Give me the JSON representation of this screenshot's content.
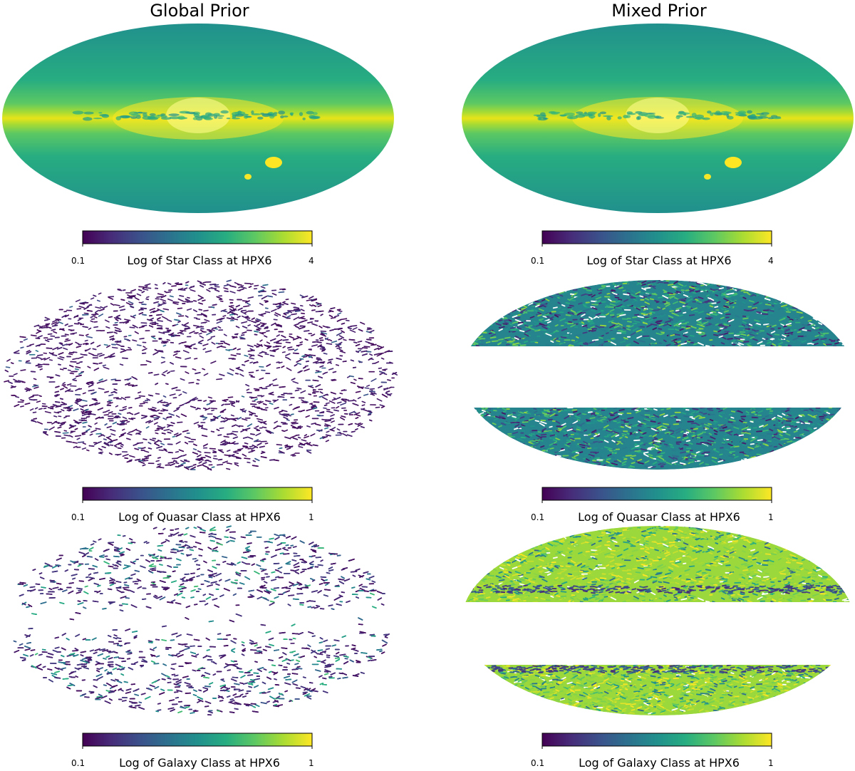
{
  "figure": {
    "columns": [
      "Global Prior",
      "Mixed Prior"
    ]
  },
  "colors": {
    "viridis": [
      "#440154",
      "#472c7a",
      "#3b518b",
      "#2c718e",
      "#21908d",
      "#27ad81",
      "#5cc863",
      "#aadc32",
      "#fde725"
    ],
    "background": "#ffffff"
  },
  "chart_data": [
    {
      "type": "heatmap",
      "projection": "mollweide",
      "panel": "global-star",
      "prior": "Global Prior",
      "object_class": "Star",
      "colorbar_label": "Log of Star Class at HPX6",
      "vmin_label": "0.1",
      "vmax_label": "4",
      "coverage": "full sky",
      "pattern": "galactic plane and bulge bright, Magellanic Clouds visible"
    },
    {
      "type": "heatmap",
      "projection": "mollweide",
      "panel": "mixed-star",
      "prior": "Mixed Prior",
      "object_class": "Star",
      "colorbar_label": "Log of Star Class at HPX6",
      "vmin_label": "0.1",
      "vmax_label": "4",
      "coverage": "full sky",
      "pattern": "galactic plane and bulge bright, Magellanic Clouds visible"
    },
    {
      "type": "heatmap",
      "projection": "mollweide",
      "panel": "global-quasar",
      "prior": "Global Prior",
      "object_class": "Quasar",
      "colorbar_label": "Log of Quasar Class at HPX6",
      "vmin_label": "0.1",
      "vmax_label": "1",
      "coverage": "sparse full sky",
      "pattern": "low values scattered, gaps near plane"
    },
    {
      "type": "heatmap",
      "projection": "mollweide",
      "panel": "mixed-quasar",
      "prior": "Mixed Prior",
      "object_class": "Quasar",
      "colorbar_label": "Log of Quasar Class at HPX6",
      "vmin_label": "0.1",
      "vmax_label": "1",
      "coverage": "high latitudes only",
      "pattern": "mid values, galactic plane masked"
    },
    {
      "type": "heatmap",
      "projection": "mollweide",
      "panel": "global-galaxy",
      "prior": "Global Prior",
      "object_class": "Galaxy",
      "colorbar_label": "Log of Galaxy Class at HPX6",
      "vmin_label": "0.1",
      "vmax_label": "1",
      "coverage": "sparse full sky",
      "pattern": "denser at high latitudes, gap along plane"
    },
    {
      "type": "heatmap",
      "projection": "mollweide",
      "panel": "mixed-galaxy",
      "prior": "Mixed Prior",
      "object_class": "Galaxy",
      "colorbar_label": "Log of Galaxy Class at HPX6",
      "vmin_label": "0.1",
      "vmax_label": "1",
      "coverage": "high latitudes only",
      "pattern": "high values, galactic plane masked"
    }
  ]
}
